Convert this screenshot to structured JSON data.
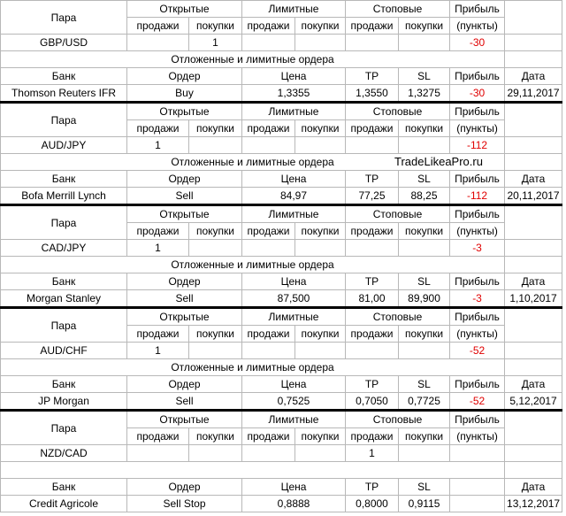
{
  "blocks": [
    {
      "header": [
        "Пара",
        "Открытые",
        "Лимитные",
        "Стоповые",
        "Прибыль"
      ],
      "subheader": [
        "продажи",
        "покупки",
        "продажи",
        "покупки",
        "продажи",
        "покупки",
        "(пункты)"
      ],
      "position": [
        "GBP/USD",
        null,
        "1",
        null,
        null,
        null,
        null,
        "-30"
      ],
      "orders_title": "Отложенные и лимитные ордера",
      "order_header": [
        "Банк",
        "Ордер",
        "Цена",
        "TP",
        "SL",
        "Прибыль",
        "Дата"
      ],
      "order": [
        "Thomson Reuters IFR",
        "Buy",
        "1,3355",
        "1,3550",
        "1,3275",
        "-30",
        "29,11,2017"
      ]
    },
    {
      "header": [
        "Пара",
        "Открытые",
        "Лимитные",
        "Стоповые",
        "Прибыль"
      ],
      "subheader": [
        "продажи",
        "покупки",
        "продажи",
        "покупки",
        "продажи",
        "покупки",
        "(пункты)"
      ],
      "position": [
        "AUD/JPY",
        "1",
        null,
        null,
        null,
        null,
        null,
        "-112"
      ],
      "orders_title": "Отложенные и лимитные ордера",
      "watermark": "TradeLikeaPro.ru",
      "order_header": [
        "Банк",
        "Ордер",
        "Цена",
        "TP",
        "SL",
        "Прибыль",
        "Дата"
      ],
      "order": [
        "Bofa Merrill Lynch",
        "Sell",
        "84,97",
        "77,25",
        "88,25",
        "-112",
        "20,11,2017"
      ]
    },
    {
      "header": [
        "Пара",
        "Открытые",
        "Лимитные",
        "Стоповые",
        "Прибыль"
      ],
      "subheader": [
        "продажи",
        "покупки",
        "продажи",
        "покупки",
        "продажи",
        "покупки",
        "(пункты)"
      ],
      "position": [
        "CAD/JPY",
        "1",
        null,
        null,
        null,
        null,
        null,
        "-3"
      ],
      "orders_title": "Отложенные и лимитные ордера",
      "order_header": [
        "Банк",
        "Ордер",
        "Цена",
        "TP",
        "SL",
        "Прибыль",
        "Дата"
      ],
      "order": [
        "Morgan Stanley",
        "Sell",
        "87,500",
        "81,00",
        "89,900",
        "-3",
        "1,10,2017"
      ]
    },
    {
      "header": [
        "Пара",
        "Открытые",
        "Лимитные",
        "Стоповые",
        "Прибыль"
      ],
      "subheader": [
        "продажи",
        "покупки",
        "продажи",
        "покупки",
        "продажи",
        "покупки",
        "(пункты)"
      ],
      "position": [
        "AUD/CHF",
        "1",
        null,
        null,
        null,
        null,
        null,
        "-52"
      ],
      "orders_title": "Отложенные и лимитные ордера",
      "order_header": [
        "Банк",
        "Ордер",
        "Цена",
        "TP",
        "SL",
        "Прибыль",
        "Дата"
      ],
      "order": [
        "JP Morgan",
        "Sell",
        "0,7525",
        "0,7050",
        "0,7725",
        "-52",
        "5,12,2017"
      ]
    },
    {
      "header": [
        "Пара",
        "Открытые",
        "Лимитные",
        "Стоповые",
        "Прибыль"
      ],
      "subheader": [
        "продажи",
        "покупки",
        "продажи",
        "покупки",
        "продажи",
        "покупки",
        "(пункты)"
      ],
      "position": [
        "NZD/CAD",
        null,
        null,
        null,
        null,
        "1",
        null,
        null
      ],
      "order_header": [
        "Банк",
        "Ордер",
        "Цена",
        "TP",
        "SL",
        null,
        "Дата"
      ],
      "order": [
        "Credit Agricole",
        "Sell Stop",
        "0,8888",
        "0,8000",
        "0,9115",
        null,
        "13,12,2017"
      ]
    }
  ]
}
